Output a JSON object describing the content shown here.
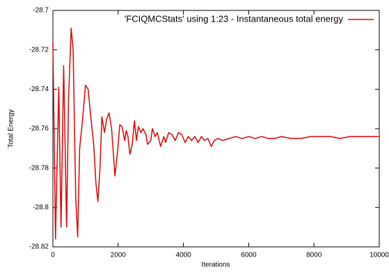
{
  "chart_data": {
    "type": "line",
    "xlabel": "Iterations",
    "ylabel": "Total Energy",
    "x": [
      0,
      80,
      180,
      250,
      330,
      420,
      480,
      560,
      620,
      700,
      760,
      820,
      900,
      1000,
      1080,
      1150,
      1250,
      1320,
      1380,
      1450,
      1500,
      1580,
      1650,
      1720,
      1800,
      1900,
      1980,
      2050,
      2120,
      2200,
      2250,
      2300,
      2360,
      2430,
      2500,
      2560,
      2620,
      2700,
      2760,
      2850,
      2900,
      3000,
      3050,
      3130,
      3200,
      3300,
      3400,
      3450,
      3550,
      3650,
      3750,
      3850,
      3950,
      4050,
      4150,
      4250,
      4350,
      4450,
      4550,
      4650,
      4750,
      4850,
      4950,
      5050,
      5200,
      5400,
      5600,
      5800,
      6000,
      6200,
      6400,
      6600,
      6800,
      7000,
      7300,
      7600,
      7900,
      8200,
      8500,
      8800,
      9100,
      9400,
      9700,
      10000
    ],
    "series": [
      {
        "name": "'FCIQMCStats' using 1:23 - Instantaneous total energy",
        "color": "#e00000",
        "values": [
          -28.716,
          -28.816,
          -28.739,
          -28.81,
          -28.728,
          -28.81,
          -28.745,
          -28.709,
          -28.72,
          -28.795,
          -28.815,
          -28.77,
          -28.757,
          -28.738,
          -28.74,
          -28.752,
          -28.768,
          -28.788,
          -28.797,
          -28.778,
          -28.754,
          -28.762,
          -28.755,
          -28.752,
          -28.76,
          -28.784,
          -28.772,
          -28.758,
          -28.759,
          -28.766,
          -28.761,
          -28.764,
          -28.773,
          -28.768,
          -28.756,
          -28.766,
          -28.759,
          -28.762,
          -28.76,
          -28.763,
          -28.768,
          -28.766,
          -28.76,
          -28.764,
          -28.762,
          -28.769,
          -28.764,
          -28.767,
          -28.762,
          -28.763,
          -28.766,
          -28.762,
          -28.763,
          -28.767,
          -28.764,
          -28.766,
          -28.764,
          -28.767,
          -28.764,
          -28.766,
          -28.765,
          -28.769,
          -28.766,
          -28.765,
          -28.766,
          -28.765,
          -28.764,
          -28.765,
          -28.764,
          -28.765,
          -28.764,
          -28.765,
          -28.765,
          -28.764,
          -28.765,
          -28.765,
          -28.764,
          -28.764,
          -28.764,
          -28.765,
          -28.764,
          -28.764,
          -28.764,
          -28.764
        ]
      }
    ],
    "xlim": [
      0,
      10000
    ],
    "xticks": [
      0,
      2000,
      4000,
      6000,
      8000,
      10000
    ],
    "ylim": [
      -28.82,
      -28.7
    ],
    "yticks": [
      -28.82,
      -28.8,
      -28.78,
      -28.76,
      -28.74,
      -28.72,
      -28.7
    ],
    "grid": false,
    "legend": "top-right"
  }
}
